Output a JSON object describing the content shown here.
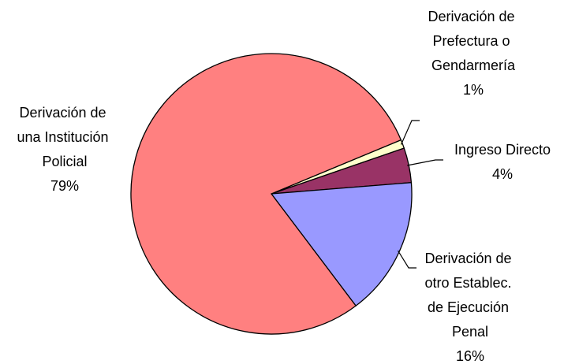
{
  "chart_data": {
    "type": "pie",
    "categories": [
      "Derivación de Prefectura o Gendarmería",
      "Ingreso Directo",
      "Derivación de otro Establec. de Ejecución Penal",
      "Derivación de una Institución Policial"
    ],
    "values": [
      1,
      4,
      16,
      79
    ],
    "value_labels": [
      "1%",
      "4%",
      "16%",
      "79%"
    ],
    "colors": [
      "#FFFFCC",
      "#993366",
      "#9999FF",
      "#FF8080"
    ]
  }
}
